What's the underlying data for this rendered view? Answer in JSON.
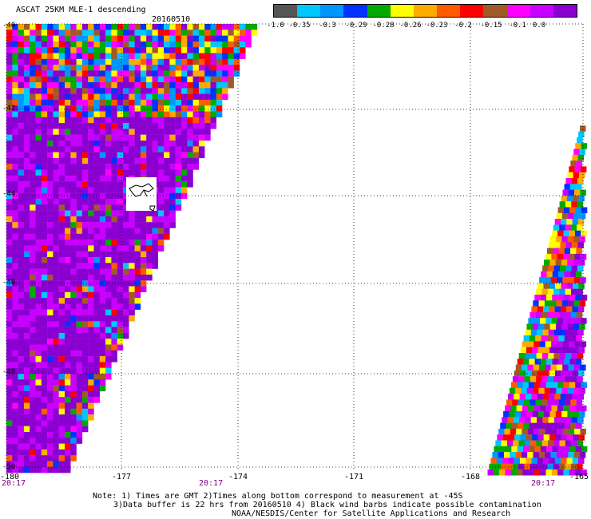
{
  "header": {
    "title": "ASCAT 25KM MLE-1 descending",
    "date": "20160510"
  },
  "colorbar": {
    "colors": [
      "#555555",
      "#00c8ff",
      "#0096ff",
      "#0032ff",
      "#00aa00",
      "#ffff00",
      "#ffaa00",
      "#ff5a00",
      "#ff0000",
      "#a05a28",
      "#ff00ff",
      "#c800ff",
      "#8a00d0"
    ],
    "tick_labels": [
      "-1.0",
      "-0.35",
      "-0.3",
      "-0.29",
      "-0.28",
      "-0.26",
      "-0.23",
      "-0.2",
      "-0.15",
      "-0.1",
      "0.0"
    ]
  },
  "map": {
    "lat_labels": [
      "-40",
      "-42",
      "-44",
      "-46",
      "-48",
      "-50"
    ],
    "lon_labels": [
      "-180",
      "-177",
      "-174",
      "-171",
      "-168",
      "-165"
    ],
    "time_labels": [
      "20:17",
      "20:17",
      "20:17"
    ],
    "lon_range": [
      -180,
      -165
    ],
    "lat_range": [
      -40,
      -50
    ]
  },
  "notes": {
    "line1": "Note: 1) Times are GMT 2)Times along bottom correspond to measurement at -45S",
    "line2": "3)Data buffer is 22 hrs from 20160510 4) Black wind barbs indicate possible contamination",
    "line3": "NOAA/NESDIS/Center for Satellite Applications and Research"
  }
}
